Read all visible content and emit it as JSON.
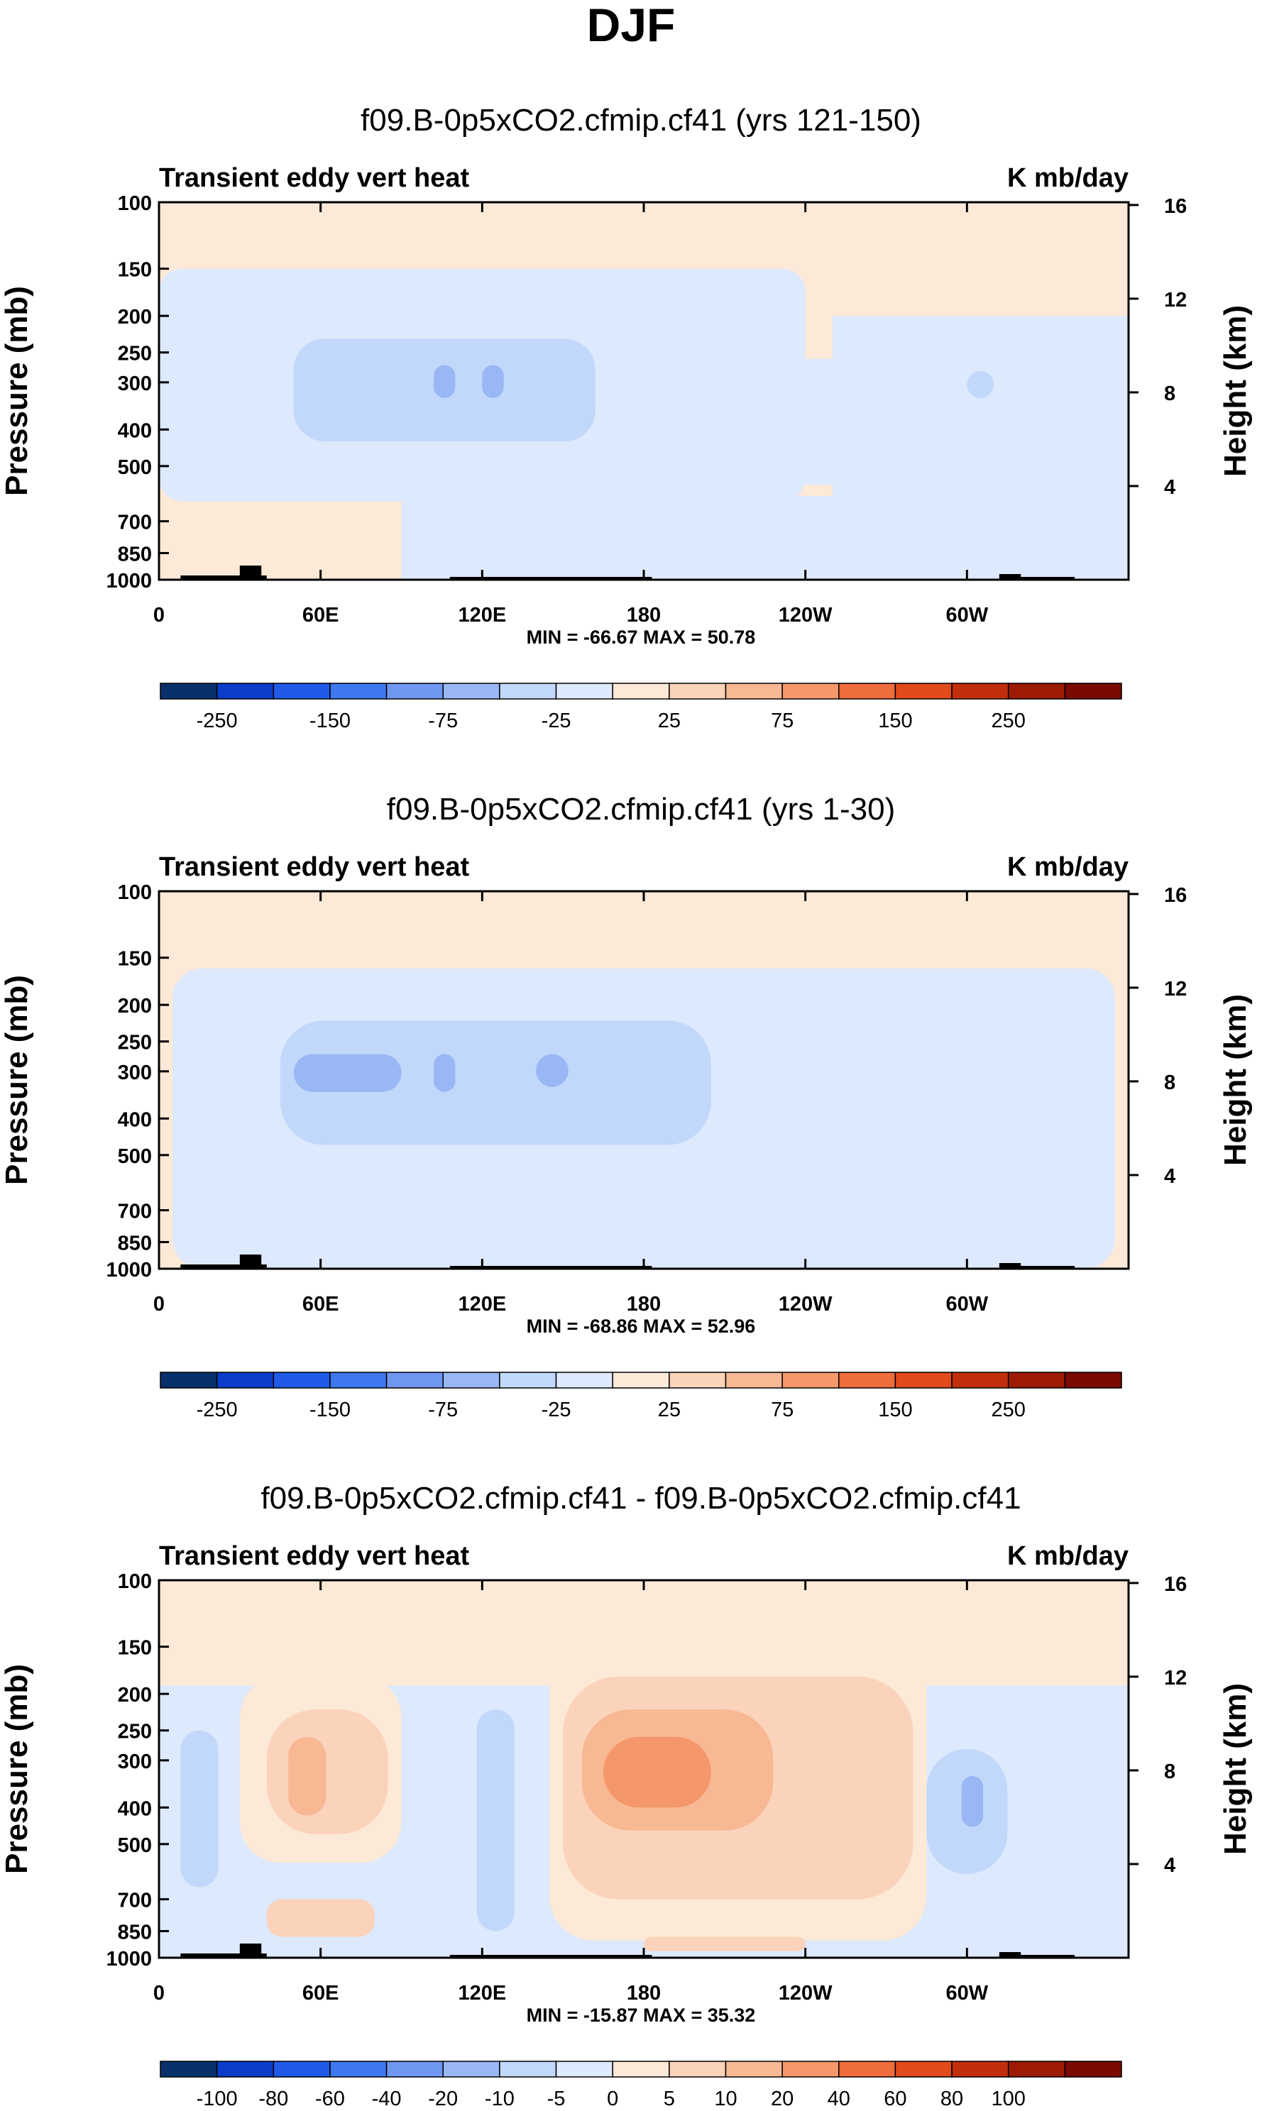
{
  "page_title": "DJF",
  "colors": {
    "axis": "#000000",
    "topography": "#000000",
    "background": "#ffffff",
    "colorbar_abs": [
      "#08306b",
      "#0a3dc8",
      "#1f5be8",
      "#3d78f0",
      "#6f97f2",
      "#9ab7f5",
      "#c2d8fa",
      "#dde9fc",
      "#fde9d7",
      "#fbd3ba",
      "#f8b894",
      "#f4976a",
      "#ef6c3c",
      "#e04a1c",
      "#c12f0c",
      "#9e1b05",
      "#7a0a02"
    ],
    "colorbar_diff": [
      "#08306b",
      "#0a3dc8",
      "#1f5be8",
      "#3d78f0",
      "#6f97f2",
      "#9ab7f5",
      "#c2d8fa",
      "#dde9fc",
      "#fde9d7",
      "#fbd3ba",
      "#f8b894",
      "#f4976a",
      "#ef6c3c",
      "#e04a1c",
      "#c12f0c",
      "#9e1b05",
      "#7a0a02"
    ]
  },
  "chart_data": [
    {
      "type": "heatmap",
      "title": "f09.B-0p5xCO2.cfmip.cf41 (yrs 121-150)",
      "left_label": "Transient eddy vert heat",
      "right_label": "K mb/day",
      "ylabel": "Pressure (mb)",
      "ylabel_right": "Height (km)",
      "y_ticks": [
        "100",
        "150",
        "200",
        "250",
        "300",
        "400",
        "500",
        "700",
        "850",
        "1000"
      ],
      "y_right_ticks": [
        "16",
        "12",
        "8",
        "4"
      ],
      "x_ticks": [
        "0",
        "60E",
        "120E",
        "180",
        "120W",
        "60W"
      ],
      "xlim": [
        0,
        360
      ],
      "ylim": [
        1000,
        100
      ],
      "stats": "MIN = -66.67  MAX = 50.78",
      "colorbar_labels": [
        "-250",
        "-150",
        "-75",
        "-25",
        "25",
        "75",
        "150",
        "250"
      ],
      "max_val": 50.78,
      "min_val": -66.67
    },
    {
      "type": "heatmap",
      "title": "f09.B-0p5xCO2.cfmip.cf41 (yrs 1-30)",
      "left_label": "Transient eddy vert heat",
      "right_label": "K mb/day",
      "ylabel": "Pressure (mb)",
      "ylabel_right": "Height (km)",
      "y_ticks": [
        "100",
        "150",
        "200",
        "250",
        "300",
        "400",
        "500",
        "700",
        "850",
        "1000"
      ],
      "y_right_ticks": [
        "16",
        "12",
        "8",
        "4"
      ],
      "x_ticks": [
        "0",
        "60E",
        "120E",
        "180",
        "120W",
        "60W"
      ],
      "xlim": [
        0,
        360
      ],
      "ylim": [
        1000,
        100
      ],
      "stats": "MIN = -68.86  MAX = 52.96",
      "colorbar_labels": [
        "-250",
        "-150",
        "-75",
        "-25",
        "25",
        "75",
        "150",
        "250"
      ],
      "max_val": 52.96,
      "min_val": -68.86
    },
    {
      "type": "heatmap",
      "title": "f09.B-0p5xCO2.cfmip.cf41 - f09.B-0p5xCO2.cfmip.cf41",
      "left_label": "Transient eddy vert heat",
      "right_label": "K mb/day",
      "ylabel": "Pressure (mb)",
      "ylabel_right": "Height (km)",
      "y_ticks": [
        "100",
        "150",
        "200",
        "250",
        "300",
        "400",
        "500",
        "700",
        "850",
        "1000"
      ],
      "y_right_ticks": [
        "16",
        "12",
        "8",
        "4"
      ],
      "x_ticks": [
        "0",
        "60E",
        "120E",
        "180",
        "120W",
        "60W"
      ],
      "xlim": [
        0,
        360
      ],
      "ylim": [
        1000,
        100
      ],
      "stats": "MIN = -15.87  MAX = 35.32",
      "colorbar_labels": [
        "-100",
        "-80",
        "-60",
        "-40",
        "-20",
        "-10",
        "-5",
        "0",
        "5",
        "10",
        "20",
        "40",
        "60",
        "80",
        "100"
      ],
      "max_val": 35.32,
      "min_val": -15.87
    }
  ]
}
